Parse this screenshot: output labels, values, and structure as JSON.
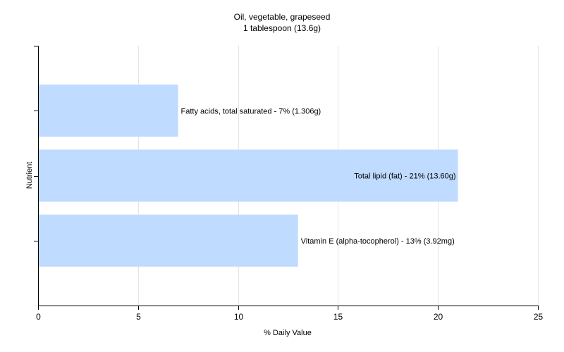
{
  "chart_data": {
    "type": "bar",
    "orientation": "horizontal",
    "title": "Oil, vegetable, grapeseed",
    "subtitle": "1 tablespoon (13.6g)",
    "xlabel": "% Daily Value",
    "ylabel": "Nutrient",
    "xlim": [
      0,
      25
    ],
    "xticks": [
      0,
      5,
      10,
      15,
      20,
      25
    ],
    "grid": true,
    "bar_color": "#bfdbff",
    "categories": [
      "Fatty acids, total saturated",
      "Total lipid (fat)",
      "Vitamin E (alpha-tocopherol)"
    ],
    "values": [
      7,
      21,
      13
    ],
    "data_labels": [
      "Fatty acids, total saturated - 7% (1.306g)",
      "Total lipid (fat) - 21% (13.60g)",
      "Vitamin E (alpha-tocopherol) - 13% (3.92mg)"
    ]
  }
}
